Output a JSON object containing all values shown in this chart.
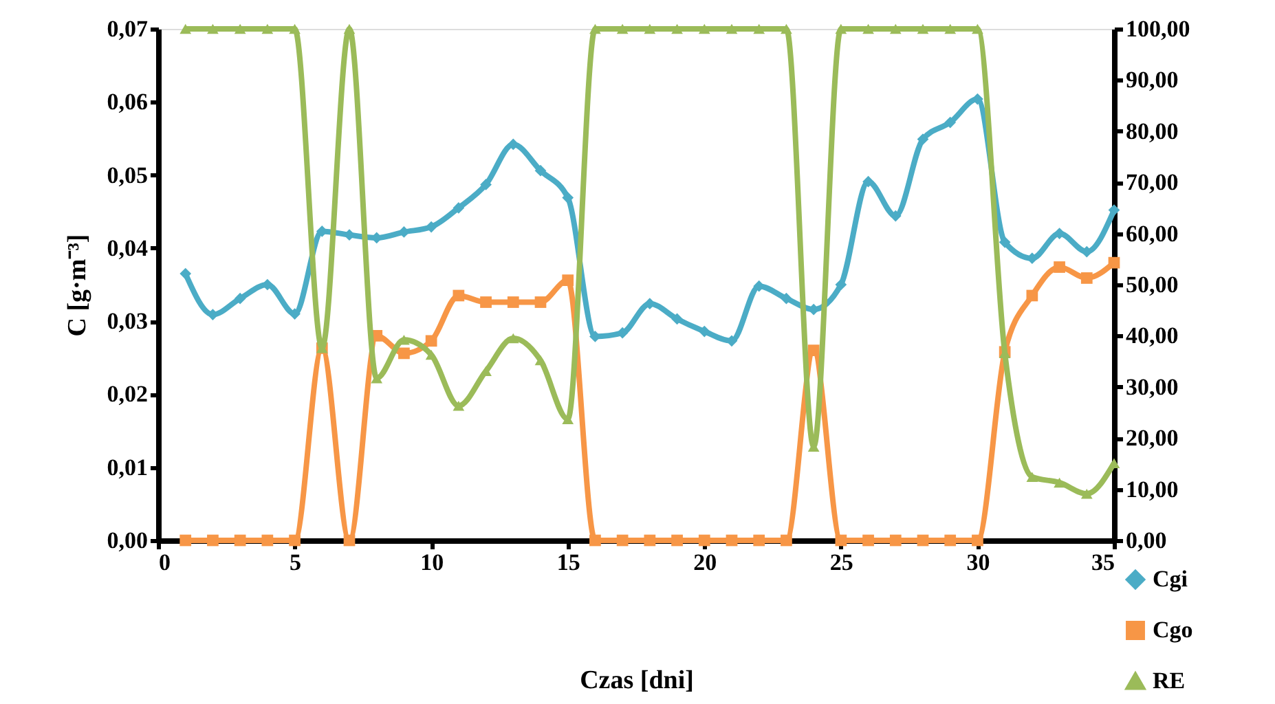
{
  "chart_data": {
    "type": "line",
    "xlabel": "Czas [dni]",
    "ylabel": "C [g·m⁻³]",
    "x": [
      1,
      2,
      3,
      4,
      5,
      6,
      7,
      8,
      9,
      10,
      11,
      12,
      13,
      14,
      15,
      16,
      17,
      18,
      19,
      20,
      21,
      22,
      23,
      24,
      25,
      26,
      27,
      28,
      29,
      30,
      31,
      32,
      33,
      34,
      35
    ],
    "series": [
      {
        "name": "Cgi",
        "color": "#4bacc6",
        "marker": "diamond",
        "axis": "y",
        "values": [
          0.0365,
          0.0309,
          0.0331,
          0.035,
          0.031,
          0.0423,
          0.0418,
          0.0414,
          0.0422,
          0.0429,
          0.0455,
          0.0487,
          0.0542,
          0.0506,
          0.0469,
          0.0279,
          0.0284,
          0.0324,
          0.0303,
          0.0286,
          0.0273,
          0.0348,
          0.0331,
          0.0316,
          0.035,
          0.0491,
          0.0444,
          0.0549,
          0.0572,
          0.0604,
          0.0408,
          0.0386,
          0.042,
          0.0395,
          0.0452
        ]
      },
      {
        "name": "Cgo",
        "color": "#f79646",
        "marker": "square",
        "axis": "y",
        "values": [
          0,
          0,
          0,
          0,
          0,
          0.0263,
          0,
          0.028,
          0.0256,
          0.0273,
          0.0335,
          0.0326,
          0.0326,
          0.0326,
          0.0356,
          0,
          0,
          0,
          0,
          0,
          0,
          0,
          0,
          0.026,
          0,
          0,
          0,
          0,
          0,
          0,
          0.0258,
          0.0335,
          0.0374,
          0.0359,
          0.038
        ]
      },
      {
        "name": "RE",
        "color": "#9bbb59",
        "marker": "triangle",
        "axis": "y2",
        "values": [
          100,
          100,
          100,
          100,
          100,
          37.6,
          100,
          31.7,
          39.2,
          36.3,
          26.3,
          33.1,
          39.5,
          35.2,
          23.7,
          100,
          100,
          100,
          100,
          100,
          100,
          100,
          100,
          18.3,
          100,
          100,
          100,
          100,
          100,
          100,
          36.6,
          12.4,
          11.3,
          9.1,
          15.1
        ]
      }
    ],
    "xlim": [
      0,
      35
    ],
    "xticks": [
      0,
      5,
      10,
      15,
      20,
      25,
      30,
      35
    ],
    "ylim": [
      0,
      0.07
    ],
    "yticks": [
      {
        "value": 0,
        "label": "0,00"
      },
      {
        "value": 0.01,
        "label": "0,01"
      },
      {
        "value": 0.02,
        "label": "0,02"
      },
      {
        "value": 0.03,
        "label": "0,03"
      },
      {
        "value": 0.04,
        "label": "0,04"
      },
      {
        "value": 0.05,
        "label": "0,05"
      },
      {
        "value": 0.06,
        "label": "0,06"
      },
      {
        "value": 0.07,
        "label": "0,07"
      }
    ],
    "y2lim": [
      0,
      100
    ],
    "y2ticks": [
      {
        "value": 0,
        "label": "0,00"
      },
      {
        "value": 10,
        "label": "10,00"
      },
      {
        "value": 20,
        "label": "20,00"
      },
      {
        "value": 30,
        "label": "30,00"
      },
      {
        "value": 40,
        "label": "40,00"
      },
      {
        "value": 50,
        "label": "50,00"
      },
      {
        "value": 60,
        "label": "60,00"
      },
      {
        "value": 70,
        "label": "70,00"
      },
      {
        "value": 80,
        "label": "80,00"
      },
      {
        "value": 90,
        "label": "90,00"
      },
      {
        "value": 100,
        "label": "100,00"
      }
    ],
    "grid": false,
    "legend": "bottom right",
    "line_style": "solid"
  }
}
